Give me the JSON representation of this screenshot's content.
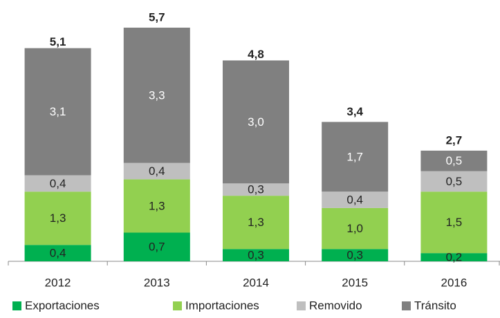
{
  "chart_data": {
    "type": "stacked_bar",
    "categories": [
      "2012",
      "2013",
      "2014",
      "2015",
      "2016"
    ],
    "series": [
      {
        "name": "Exportaciones",
        "color": "#00b050",
        "label_color": "#222222",
        "values": [
          0.4,
          0.7,
          0.3,
          0.3,
          0.2
        ],
        "value_labels": [
          "0,4",
          "0,7",
          "0,3",
          "0,3",
          "0,2"
        ]
      },
      {
        "name": "Importaciones",
        "color": "#92d050",
        "label_color": "#222222",
        "values": [
          1.3,
          1.3,
          1.3,
          1.0,
          1.5
        ],
        "value_labels": [
          "1,3",
          "1,3",
          "1,3",
          "1,0",
          "1,5"
        ]
      },
      {
        "name": "Removido",
        "color": "#bfbfbf",
        "label_color": "#222222",
        "values": [
          0.4,
          0.4,
          0.3,
          0.4,
          0.5
        ],
        "value_labels": [
          "0,4",
          "0,4",
          "0,3",
          "0,4",
          "0,5"
        ]
      },
      {
        "name": "Tránsito",
        "color": "#808080",
        "label_color": "#ffffff",
        "values": [
          3.1,
          3.3,
          3.0,
          1.7,
          0.5
        ],
        "value_labels": [
          "3,1",
          "3,3",
          "3,0",
          "1,7",
          "0,5"
        ]
      }
    ],
    "totals": [
      5.1,
      5.7,
      4.8,
      3.4,
      2.7
    ],
    "total_labels": [
      "5,1",
      "5,7",
      "4,8",
      "3,4",
      "2,7"
    ],
    "legend": "bottom"
  }
}
